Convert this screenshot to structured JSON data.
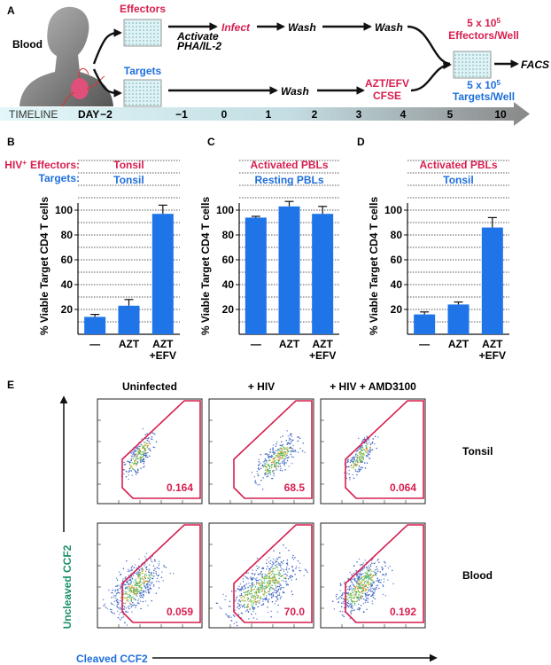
{
  "panel_a": {
    "label": "A",
    "source": "Blood",
    "effectors": "Effectors",
    "targets": "Targets",
    "effector_steps": {
      "activate": [
        "Activate",
        "PHA/IL-2"
      ],
      "infect": "Infect",
      "wash_1": "Wash",
      "wash_2": "Wash"
    },
    "target_steps": {
      "wash": "Wash",
      "treatment": [
        "AZT/EFV",
        "CFSE"
      ]
    },
    "effectors_per_well": {
      "base": "5 x 10",
      "exponent": "5",
      "unit": "Effectors/Well"
    },
    "targets_per_well": {
      "base": "5 x 10",
      "exponent": "5",
      "unit": "Targets/Well"
    },
    "readout": "FACS",
    "timeline": {
      "label": "TIMELINE",
      "day_label": "DAY",
      "days": [
        "−2",
        "−1",
        "0",
        "1",
        "2",
        "3",
        "4",
        "5",
        "10"
      ]
    }
  },
  "chart_data": [
    {
      "type": "bar",
      "panel": "B",
      "effectors_label": {
        "base": "HIV",
        "sup": "+",
        "rest": "Effectors:"
      },
      "targets_label": "Targets:",
      "effectors": "Tonsil",
      "targets": "Tonsil",
      "ylabel": "% Viable Target CD4 T cells",
      "categories": [
        "—",
        "AZT",
        "AZT\n+EFV"
      ],
      "values": [
        14,
        23,
        97
      ],
      "errors": [
        2,
        5,
        7
      ],
      "color": "#1f74e8",
      "ylim": [
        0,
        140
      ],
      "yticks": [
        20,
        40,
        60,
        80,
        100
      ],
      "grid": true,
      "gridlines": [
        10,
        20,
        30,
        40,
        50,
        60,
        70,
        80,
        90,
        100,
        110,
        120,
        130,
        140
      ]
    },
    {
      "type": "bar",
      "panel": "C",
      "effectors": "Activated PBLs",
      "targets": "Resting PBLs",
      "ylabel": "% Viable Target CD4 T cells",
      "categories": [
        "—",
        "AZT",
        "AZT\n+EFV"
      ],
      "values": [
        94,
        103,
        97
      ],
      "errors": [
        1,
        4,
        6
      ],
      "color": "#1f74e8",
      "ylim": [
        0,
        140
      ],
      "yticks": [
        20,
        40,
        60,
        80,
        100
      ],
      "grid": true,
      "gridlines": [
        10,
        20,
        30,
        40,
        50,
        60,
        70,
        80,
        90,
        100,
        110,
        120,
        130,
        140
      ]
    },
    {
      "type": "bar",
      "panel": "D",
      "effectors": "Activated PBLs",
      "targets": "Tonsil",
      "ylabel": "% Viable Target CD4 T cells",
      "categories": [
        "—",
        "AZT",
        "AZT\n+EFV"
      ],
      "values": [
        16,
        24,
        86
      ],
      "errors": [
        2,
        2,
        8
      ],
      "color": "#1f74e8",
      "ylim": [
        0,
        140
      ],
      "yticks": [
        20,
        40,
        60,
        80,
        100
      ],
      "grid": true,
      "gridlines": [
        10,
        20,
        30,
        40,
        50,
        60,
        70,
        80,
        90,
        100,
        110,
        120,
        130,
        140
      ]
    }
  ],
  "panel_e": {
    "label": "E",
    "columns": [
      "Uninfected",
      "+ HIV",
      "+ HIV + AMD3100"
    ],
    "rows": [
      "Tonsil",
      "Blood"
    ],
    "y_axis": "Uncleaved CCF2",
    "x_axis": "Cleaved CCF2",
    "gates": [
      [
        "0.164",
        "68.5",
        "0.064"
      ],
      [
        "0.059",
        "70.0",
        "0.192"
      ]
    ]
  }
}
